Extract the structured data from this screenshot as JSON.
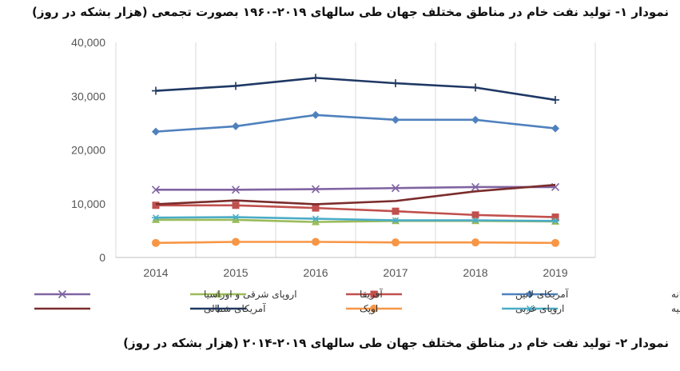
{
  "chart_data": {
    "type": "line",
    "title": "نمودار ۱- تولید نفت خام در مناطق مختلف جهان طی سالهای ۲۰۱۹-۱۹۶۰ بصورت تجمعی (هزار بشکه در روز)",
    "caption": "نمودار ۲- تولید نفت خام در مناطق مختلف جهان طی سالهای ۲۰۱۹-۲۰۱۴ (هزار بشکه در روز)",
    "x": [
      "2014",
      "2015",
      "2016",
      "2017",
      "2018",
      "2019"
    ],
    "y_ticks": [
      "0",
      "10,000",
      "20,000",
      "30,000",
      "40,000"
    ],
    "ylim": [
      0,
      40000
    ],
    "grid": true,
    "legend_position": "bottom",
    "series": [
      {
        "name": "خاورمیانه",
        "color": "#4F81BD",
        "marker": "diamond",
        "values": [
          23400,
          24400,
          26500,
          25600,
          25600,
          24000
        ]
      },
      {
        "name": "آمریکای لاتین",
        "color": "#C0504D",
        "marker": "square",
        "values": [
          9700,
          9700,
          9200,
          8600,
          7900,
          7500
        ]
      },
      {
        "name": "آفریقا",
        "color": "#9BBB59",
        "marker": "triangle",
        "values": [
          7000,
          7000,
          6600,
          6800,
          6800,
          6700
        ]
      },
      {
        "name": "اروپای شرقی و اوراسیا",
        "color": "#8064A2",
        "marker": "x",
        "values": [
          12600,
          12600,
          12700,
          12900,
          13100,
          13100
        ]
      },
      {
        "name": "آسیا و اقیانوسیه",
        "color": "#4BACC6",
        "marker": "asterisk",
        "values": [
          7400,
          7500,
          7200,
          6900,
          6900,
          6800
        ]
      },
      {
        "name": "اروپای غربی",
        "color": "#F79646",
        "marker": "circle",
        "values": [
          2700,
          2900,
          2900,
          2800,
          2800,
          2700
        ]
      },
      {
        "name": "اوپک",
        "color": "#1F3864",
        "marker": "plus",
        "values": [
          31000,
          31900,
          33400,
          32400,
          31600,
          29300
        ]
      },
      {
        "name": "آمریکای شمالی",
        "color": "#7B2C2C",
        "marker": "none",
        "values": [
          9900,
          10600,
          9900,
          10500,
          12300,
          13500
        ]
      }
    ]
  }
}
